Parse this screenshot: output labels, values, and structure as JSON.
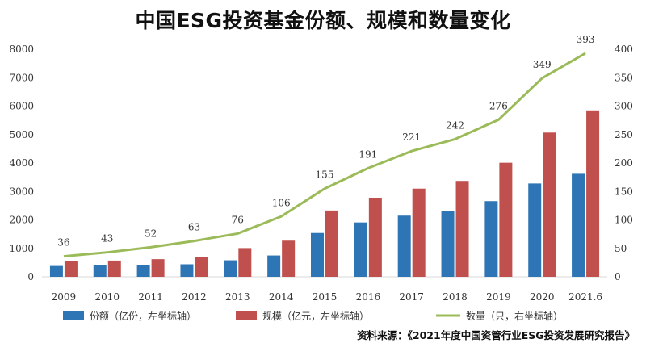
{
  "title": "中国ESG投资基金份额、规模和数量变化",
  "source": "资料来源：《2021年度中国资管行业ESG投资发展研究报告》",
  "colors": {
    "share": "#2e75b6",
    "scale": "#c0504d",
    "count": "#9bbb59",
    "axis": "#d9d9d9"
  },
  "chart_data": {
    "type": "bar",
    "categories": [
      "2009",
      "2010",
      "2011",
      "2012",
      "2013",
      "2014",
      "2015",
      "2016",
      "2017",
      "2018",
      "2019",
      "2020",
      "2021.6"
    ],
    "series": [
      {
        "name": "份额（亿份，左坐标轴）",
        "type": "bar",
        "axis": "left",
        "values": [
          380,
          400,
          420,
          440,
          580,
          750,
          1540,
          1910,
          2150,
          2310,
          2660,
          3280,
          3620
        ]
      },
      {
        "name": "规模（亿元，左坐标轴）",
        "type": "bar",
        "axis": "left",
        "values": [
          540,
          570,
          620,
          690,
          1010,
          1270,
          2330,
          2780,
          3100,
          3370,
          4010,
          5070,
          5850
        ]
      },
      {
        "name": "数量（只，右坐标轴）",
        "type": "line",
        "axis": "right",
        "values": [
          36,
          43,
          52,
          63,
          76,
          106,
          155,
          191,
          221,
          242,
          276,
          349,
          393
        ],
        "labels": [
          "36",
          "43",
          "52",
          "63",
          "76",
          "106",
          "155",
          "191",
          "221",
          "242",
          "276",
          "349",
          "393"
        ]
      }
    ],
    "left_axis": {
      "ylim": [
        0,
        8000
      ],
      "ticks": [
        "0",
        "1000",
        "2000",
        "3000",
        "4000",
        "5000",
        "6000",
        "7000",
        "8000"
      ]
    },
    "right_axis": {
      "ylim": [
        0,
        400
      ],
      "ticks": [
        "0",
        "50",
        "100",
        "150",
        "200",
        "250",
        "300",
        "350",
        "400"
      ]
    },
    "grid": false,
    "legend_position": "bottom"
  }
}
